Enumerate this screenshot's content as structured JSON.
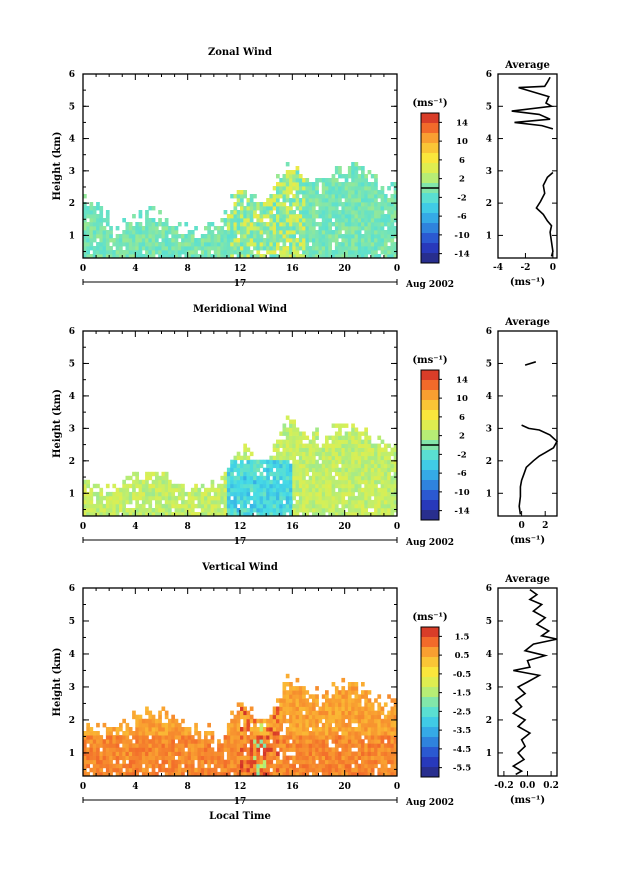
{
  "page": {
    "date_label": "Aug 2002",
    "day_label": "17",
    "local_time_label": "Local Time"
  },
  "chart_data": [
    {
      "id": "zonal",
      "type": "heatmap",
      "title": "Zonal Wind",
      "ylabel": "Height (km)",
      "xlim": [
        0,
        24
      ],
      "ylim": [
        0.3,
        6
      ],
      "xticks": [
        "0",
        "4",
        "8",
        "12",
        "16",
        "20",
        "0"
      ],
      "yticks": [
        "1",
        "2",
        "3",
        "4",
        "5",
        "6"
      ],
      "colorbar": {
        "unit": "(ms⁻¹)",
        "range": [
          -15,
          15
        ],
        "ticks": [
          "14",
          "10",
          "6",
          "2",
          "-2",
          "-6",
          "-10",
          "-14"
        ]
      },
      "profile": {
        "title": "Average",
        "xlabel": "(ms⁻¹)",
        "xlim": [
          -4,
          0.3
        ],
        "xticks": [
          "-4",
          "-2",
          "0"
        ],
        "points": [
          [
            -0.2,
            5.9
          ],
          [
            -0.4,
            5.75
          ],
          [
            -0.6,
            5.62
          ],
          [
            -2.5,
            5.58
          ],
          [
            -0.3,
            5.3
          ],
          [
            -0.5,
            5.1
          ],
          [
            -0.1,
            5.0
          ],
          [
            -3.0,
            4.85
          ],
          [
            -1.0,
            4.75
          ],
          [
            -0.2,
            4.6
          ],
          [
            -2.8,
            4.5
          ],
          [
            -0.8,
            4.4
          ],
          [
            0.0,
            4.3
          ],
          [
            0.0,
            2.95
          ],
          [
            -0.4,
            2.8
          ],
          [
            -0.7,
            2.55
          ],
          [
            -0.6,
            2.3
          ],
          [
            -0.9,
            2.05
          ],
          [
            -1.2,
            1.85
          ],
          [
            -0.7,
            1.65
          ],
          [
            -0.4,
            1.45
          ],
          [
            -0.1,
            1.3
          ],
          [
            -0.2,
            1.1
          ],
          [
            -0.1,
            0.8
          ],
          [
            0.0,
            0.5
          ],
          [
            -0.1,
            0.35
          ]
        ]
      }
    },
    {
      "id": "meridional",
      "type": "heatmap",
      "title": "Meridional Wind",
      "ylabel": "Height (km)",
      "xlim": [
        0,
        24
      ],
      "ylim": [
        0.3,
        6
      ],
      "xticks": [
        "0",
        "4",
        "8",
        "12",
        "16",
        "20",
        "0"
      ],
      "yticks": [
        "1",
        "2",
        "3",
        "4",
        "5",
        "6"
      ],
      "colorbar": {
        "unit": "(ms⁻¹)",
        "range": [
          -15,
          15
        ],
        "ticks": [
          "14",
          "10",
          "6",
          "2",
          "-2",
          "-6",
          "-10",
          "-14"
        ]
      },
      "profile": {
        "title": "Average",
        "xlabel": "(ms⁻¹)",
        "xlim": [
          -2,
          3
        ],
        "xticks": [
          "0",
          "2"
        ],
        "points": [
          [
            1.2,
            5.05
          ],
          [
            0.3,
            4.95
          ],
          [
            0.0,
            3.1
          ],
          [
            0.6,
            3.0
          ],
          [
            1.5,
            2.95
          ],
          [
            2.4,
            2.8
          ],
          [
            3.0,
            2.6
          ],
          [
            2.7,
            2.4
          ],
          [
            2.0,
            2.25
          ],
          [
            1.5,
            2.15
          ],
          [
            1.0,
            2.0
          ],
          [
            0.4,
            1.8
          ],
          [
            0.2,
            1.6
          ],
          [
            0.0,
            1.4
          ],
          [
            -0.1,
            1.2
          ],
          [
            -0.1,
            0.9
          ],
          [
            -0.2,
            0.6
          ],
          [
            -0.1,
            0.35
          ]
        ]
      }
    },
    {
      "id": "vertical",
      "type": "heatmap",
      "title": "Vertical Wind",
      "ylabel": "Height (km)",
      "xlabel": "Local Time",
      "xlim": [
        0,
        24
      ],
      "ylim": [
        0.3,
        6
      ],
      "xticks": [
        "0",
        "4",
        "8",
        "12",
        "16",
        "20",
        "0"
      ],
      "yticks": [
        "1",
        "2",
        "3",
        "4",
        "5",
        "6"
      ],
      "colorbar": {
        "unit": "(ms⁻¹)",
        "range": [
          -6,
          2
        ],
        "ticks": [
          "1.5",
          "0.5",
          "-0.5",
          "-1.5",
          "-2.5",
          "-3.5",
          "-4.5",
          "-5.5"
        ]
      },
      "profile": {
        "title": "Average",
        "xlabel": "(ms⁻¹)",
        "xlim": [
          -0.25,
          0.25
        ],
        "xticks": [
          "-0.2",
          "0.0",
          "0.2"
        ],
        "points": [
          [
            0.02,
            5.95
          ],
          [
            0.08,
            5.8
          ],
          [
            0.02,
            5.65
          ],
          [
            0.12,
            5.5
          ],
          [
            0.05,
            5.3
          ],
          [
            0.15,
            5.1
          ],
          [
            0.08,
            4.9
          ],
          [
            0.18,
            4.7
          ],
          [
            0.12,
            4.55
          ],
          [
            0.25,
            4.45
          ],
          [
            0.05,
            4.3
          ],
          [
            -0.02,
            4.1
          ],
          [
            0.15,
            3.95
          ],
          [
            0.0,
            3.8
          ],
          [
            0.02,
            3.6
          ],
          [
            -0.12,
            3.5
          ],
          [
            0.1,
            3.35
          ],
          [
            0.0,
            3.15
          ],
          [
            -0.08,
            3.0
          ],
          [
            -0.02,
            2.8
          ],
          [
            -0.1,
            2.6
          ],
          [
            -0.05,
            2.4
          ],
          [
            -0.12,
            2.2
          ],
          [
            -0.02,
            2.0
          ],
          [
            -0.08,
            1.8
          ],
          [
            0.02,
            1.6
          ],
          [
            -0.05,
            1.4
          ],
          [
            -0.02,
            1.2
          ],
          [
            -0.08,
            1.0
          ],
          [
            -0.03,
            0.8
          ],
          [
            -0.12,
            0.6
          ],
          [
            -0.05,
            0.45
          ],
          [
            -0.1,
            0.35
          ]
        ]
      }
    }
  ]
}
